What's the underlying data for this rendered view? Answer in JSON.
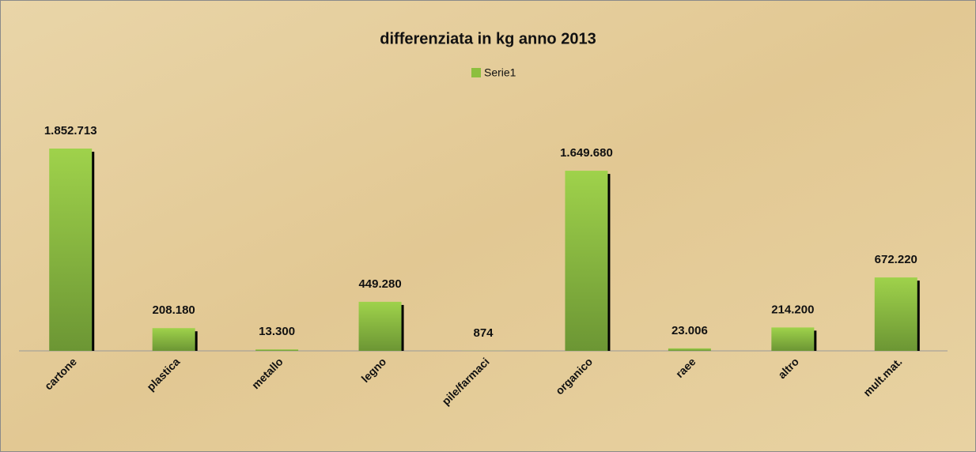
{
  "chart_data": {
    "type": "bar",
    "title": "differenziata in kg anno 2013",
    "categories": [
      "cartone",
      "plastica",
      "metallo",
      "legno",
      "pile/farmaci",
      "organico",
      "raee",
      "altro",
      "mult.mat."
    ],
    "series": [
      {
        "name": "Serie1",
        "color": "#8cbf3f",
        "values": [
          1852713,
          208180,
          13300,
          449280,
          874,
          1649680,
          23006,
          214200,
          672220
        ],
        "value_labels": [
          "1.852.713",
          "208.180",
          "13.300",
          "449.280",
          "874",
          "1.649.680",
          "23.006",
          "214.200",
          "672.220"
        ]
      }
    ],
    "legend": "top"
  }
}
